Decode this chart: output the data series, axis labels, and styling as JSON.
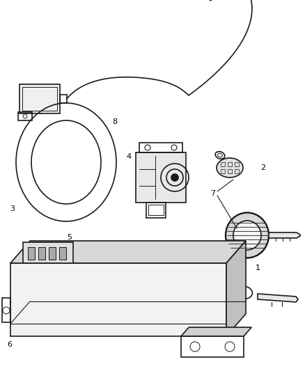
{
  "background_color": "#ffffff",
  "line_color": "#1a1a1a",
  "label_color": "#000000",
  "label_fontsize": 8,
  "fig_width": 4.38,
  "fig_height": 5.33,
  "dpi": 100
}
